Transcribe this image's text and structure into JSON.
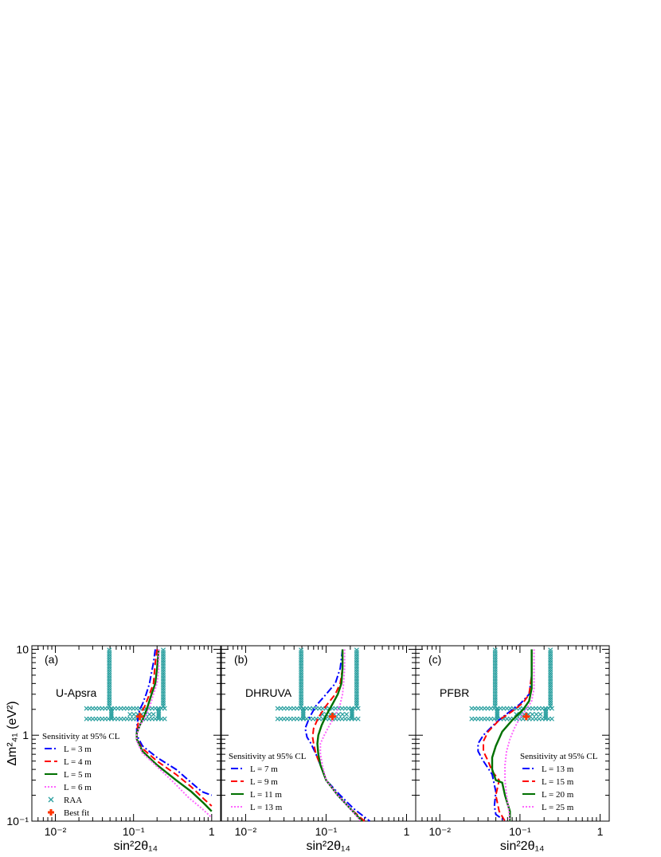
{
  "figure": {
    "xlabel": "sin²2θ₁₄",
    "ylabel": "Δm²₄₁ (eV²)",
    "x_tick_labels": [
      "10⁻²",
      "10⁻¹",
      "1"
    ],
    "y_tick_labels": [
      "10⁻¹",
      "1",
      "10"
    ]
  },
  "chart_data": [
    {
      "type": "line",
      "panel_tag": "(a)",
      "panel_name": "U-Apsra",
      "xscale": "log",
      "yscale": "log",
      "xlim": [
        0.005,
        1.3
      ],
      "ylim": [
        0.1,
        11
      ],
      "legend_title": "Sensitivity at 95% CL",
      "legend_position": "bottom-left",
      "series": [
        {
          "name": "L = 3 m",
          "color": "#0000ff",
          "style": "dashdot",
          "points": [
            [
              0.19,
              10
            ],
            [
              0.18,
              7
            ],
            [
              0.16,
              4
            ],
            [
              0.145,
              3
            ],
            [
              0.13,
              2.3
            ],
            [
              0.12,
              2.0
            ],
            [
              0.115,
              1.7
            ],
            [
              0.11,
              1.2
            ],
            [
              0.11,
              1.0
            ],
            [
              0.13,
              0.75
            ],
            [
              0.2,
              0.55
            ],
            [
              0.35,
              0.4
            ],
            [
              0.55,
              0.28
            ],
            [
              0.75,
              0.22
            ],
            [
              1.0,
              0.2
            ]
          ]
        },
        {
          "name": "L = 4 m",
          "color": "#ff0000",
          "style": "dashed",
          "points": [
            [
              0.2,
              10
            ],
            [
              0.19,
              7
            ],
            [
              0.18,
              4
            ],
            [
              0.16,
              3
            ],
            [
              0.14,
              2.2
            ],
            [
              0.125,
              1.8
            ],
            [
              0.115,
              1.4
            ],
            [
              0.11,
              1.1
            ],
            [
              0.11,
              0.9
            ],
            [
              0.13,
              0.7
            ],
            [
              0.2,
              0.5
            ],
            [
              0.35,
              0.35
            ],
            [
              0.55,
              0.25
            ],
            [
              0.8,
              0.18
            ],
            [
              1.0,
              0.15
            ]
          ]
        },
        {
          "name": "L = 5 m",
          "color": "#007000",
          "style": "solid",
          "points": [
            [
              0.21,
              10
            ],
            [
              0.2,
              6
            ],
            [
              0.19,
              4
            ],
            [
              0.17,
              3
            ],
            [
              0.15,
              2.1
            ],
            [
              0.135,
              1.6
            ],
            [
              0.12,
              1.3
            ],
            [
              0.11,
              1.05
            ],
            [
              0.11,
              0.9
            ],
            [
              0.13,
              0.65
            ],
            [
              0.2,
              0.45
            ],
            [
              0.35,
              0.3
            ],
            [
              0.55,
              0.22
            ],
            [
              0.8,
              0.16
            ],
            [
              1.0,
              0.13
            ]
          ]
        },
        {
          "name": "L = 6 m",
          "color": "#ff66ff",
          "style": "dotted",
          "points": [
            [
              0.21,
              10
            ],
            [
              0.21,
              6
            ],
            [
              0.2,
              4
            ],
            [
              0.18,
              3
            ],
            [
              0.16,
              2.1
            ],
            [
              0.14,
              1.6
            ],
            [
              0.12,
              1.3
            ],
            [
              0.11,
              1.0
            ],
            [
              0.11,
              0.85
            ],
            [
              0.13,
              0.62
            ],
            [
              0.2,
              0.43
            ],
            [
              0.33,
              0.28
            ],
            [
              0.5,
              0.19
            ],
            [
              0.75,
              0.14
            ],
            [
              1.0,
              0.11
            ]
          ]
        }
      ],
      "raa": {
        "name": "RAA",
        "color": "#2ba0a0"
      },
      "best_fit": {
        "name": "Best fit",
        "x": 0.12,
        "y": 1.65,
        "color": "#ff3300"
      }
    },
    {
      "type": "line",
      "panel_tag": "(b)",
      "panel_name": "DHRUVA",
      "xscale": "log",
      "yscale": "log",
      "xlim": [
        0.005,
        1.3
      ],
      "ylim": [
        0.1,
        11
      ],
      "legend_title": "Sensitivity at 95% CL",
      "legend_position": "bottom-left",
      "series": [
        {
          "name": "L = 7 m",
          "color": "#0000ff",
          "style": "dashdot",
          "points": [
            [
              0.16,
              10
            ],
            [
              0.15,
              6
            ],
            [
              0.13,
              4
            ],
            [
              0.1,
              3
            ],
            [
              0.075,
              2.2
            ],
            [
              0.062,
              1.6
            ],
            [
              0.055,
              1.2
            ],
            [
              0.058,
              0.95
            ],
            [
              0.065,
              0.8
            ],
            [
              0.075,
              0.6
            ],
            [
              0.085,
              0.45
            ],
            [
              0.1,
              0.3
            ],
            [
              0.15,
              0.2
            ],
            [
              0.22,
              0.14
            ],
            [
              0.35,
              0.1
            ]
          ]
        },
        {
          "name": "L = 9 m",
          "color": "#ff0000",
          "style": "dashed",
          "points": [
            [
              0.16,
              10
            ],
            [
              0.16,
              6
            ],
            [
              0.15,
              4
            ],
            [
              0.13,
              3
            ],
            [
              0.1,
              2.2
            ],
            [
              0.08,
              1.6
            ],
            [
              0.07,
              1.2
            ],
            [
              0.068,
              0.95
            ],
            [
              0.07,
              0.8
            ],
            [
              0.075,
              0.6
            ],
            [
              0.085,
              0.45
            ],
            [
              0.1,
              0.3
            ],
            [
              0.14,
              0.2
            ],
            [
              0.2,
              0.14
            ],
            [
              0.3,
              0.1
            ]
          ]
        },
        {
          "name": "L = 11 m",
          "color": "#007000",
          "style": "solid",
          "points": [
            [
              0.16,
              10
            ],
            [
              0.16,
              6
            ],
            [
              0.155,
              4
            ],
            [
              0.14,
              3
            ],
            [
              0.12,
              2.3
            ],
            [
              0.1,
              1.7
            ],
            [
              0.088,
              1.3
            ],
            [
              0.08,
              1.0
            ],
            [
              0.078,
              0.8
            ],
            [
              0.08,
              0.6
            ],
            [
              0.085,
              0.45
            ],
            [
              0.1,
              0.3
            ],
            [
              0.14,
              0.2
            ],
            [
              0.2,
              0.14
            ],
            [
              0.28,
              0.1
            ]
          ]
        },
        {
          "name": "L = 13 m",
          "color": "#ff66ff",
          "style": "dotted",
          "points": [
            [
              0.17,
              10
            ],
            [
              0.17,
              6
            ],
            [
              0.165,
              4
            ],
            [
              0.16,
              3
            ],
            [
              0.15,
              2.3
            ],
            [
              0.13,
              1.7
            ],
            [
              0.11,
              1.3
            ],
            [
              0.095,
              1.0
            ],
            [
              0.085,
              0.8
            ],
            [
              0.085,
              0.6
            ],
            [
              0.09,
              0.45
            ],
            [
              0.1,
              0.3
            ],
            [
              0.14,
              0.2
            ],
            [
              0.2,
              0.14
            ],
            [
              0.27,
              0.1
            ]
          ]
        }
      ],
      "raa": {
        "name": "RAA",
        "color": "#2ba0a0"
      },
      "best_fit": {
        "name": "Best fit",
        "x": 0.12,
        "y": 1.65,
        "color": "#ff3300"
      }
    },
    {
      "type": "line",
      "panel_tag": "(c)",
      "panel_name": "PFBR",
      "xscale": "log",
      "yscale": "log",
      "xlim": [
        0.005,
        1.3
      ],
      "ylim": [
        0.1,
        11
      ],
      "legend_title": "Sensitivity at 95% CL",
      "legend_position": "bottom-right",
      "series": [
        {
          "name": "L = 13 m",
          "color": "#0000ff",
          "style": "dashdot",
          "points": [
            [
              0.14,
              10
            ],
            [
              0.14,
              5
            ],
            [
              0.13,
              3
            ],
            [
              0.1,
              2.3
            ],
            [
              0.07,
              1.8
            ],
            [
              0.05,
              1.4
            ],
            [
              0.035,
              1.0
            ],
            [
              0.03,
              0.8
            ],
            [
              0.03,
              0.65
            ],
            [
              0.035,
              0.5
            ],
            [
              0.045,
              0.35
            ],
            [
              0.05,
              0.22
            ],
            [
              0.048,
              0.15
            ],
            [
              0.05,
              0.12
            ],
            [
              0.065,
              0.1
            ]
          ]
        },
        {
          "name": "L = 15 m",
          "color": "#ff0000",
          "style": "dashed",
          "points": [
            [
              0.14,
              10
            ],
            [
              0.14,
              5
            ],
            [
              0.13,
              3
            ],
            [
              0.11,
              2.4
            ],
            [
              0.08,
              1.9
            ],
            [
              0.055,
              1.5
            ],
            [
              0.04,
              1.1
            ],
            [
              0.035,
              0.85
            ],
            [
              0.035,
              0.65
            ],
            [
              0.04,
              0.5
            ],
            [
              0.045,
              0.38
            ],
            [
              0.055,
              0.3
            ],
            [
              0.05,
              0.2
            ],
            [
              0.055,
              0.13
            ],
            [
              0.065,
              0.1
            ]
          ]
        },
        {
          "name": "L = 20 m",
          "color": "#007000",
          "style": "solid",
          "points": [
            [
              0.14,
              10
            ],
            [
              0.14,
              6
            ],
            [
              0.14,
              3.5
            ],
            [
              0.13,
              2.5
            ],
            [
              0.11,
              2.0
            ],
            [
              0.08,
              1.5
            ],
            [
              0.06,
              1.1
            ],
            [
              0.05,
              0.75
            ],
            [
              0.045,
              0.55
            ],
            [
              0.045,
              0.4
            ],
            [
              0.05,
              0.3
            ],
            [
              0.06,
              0.28
            ],
            [
              0.065,
              0.2
            ],
            [
              0.075,
              0.13
            ],
            [
              0.075,
              0.1
            ]
          ]
        },
        {
          "name": "L = 25 m",
          "color": "#ff66ff",
          "style": "dotted",
          "points": [
            [
              0.15,
              10
            ],
            [
              0.15,
              6
            ],
            [
              0.15,
              3.5
            ],
            [
              0.14,
              2.5
            ],
            [
              0.12,
              2.0
            ],
            [
              0.1,
              1.6
            ],
            [
              0.085,
              1.2
            ],
            [
              0.075,
              0.9
            ],
            [
              0.068,
              0.65
            ],
            [
              0.065,
              0.45
            ],
            [
              0.065,
              0.3
            ],
            [
              0.068,
              0.2
            ],
            [
              0.072,
              0.14
            ],
            [
              0.075,
              0.1
            ]
          ]
        }
      ],
      "raa": {
        "name": "RAA",
        "color": "#2ba0a0"
      },
      "best_fit": {
        "name": "Best fit",
        "x": 0.12,
        "y": 1.65,
        "color": "#ff3300"
      }
    }
  ]
}
